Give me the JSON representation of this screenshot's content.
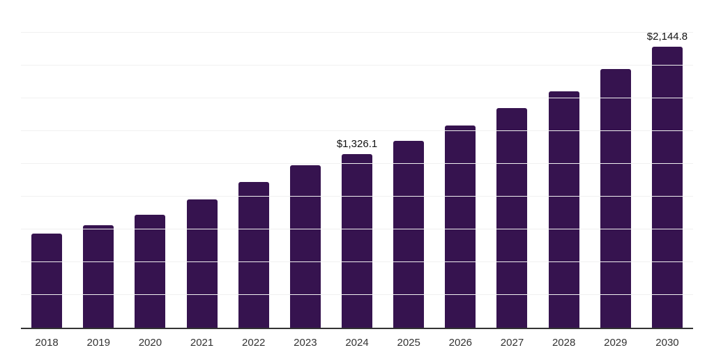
{
  "chart_meta": {
    "background_color": "#ffffff",
    "bar_color": "#36134f",
    "axis_line_color": "#333333",
    "gridline_color": "#f0f0f0",
    "tick_label_color": "#333333",
    "data_label_color": "#111111"
  },
  "chart_data": {
    "type": "bar",
    "title": "",
    "xlabel": "",
    "ylabel": "",
    "categories": [
      "2018",
      "2019",
      "2020",
      "2021",
      "2022",
      "2023",
      "2024",
      "2025",
      "2026",
      "2027",
      "2028",
      "2029",
      "2030"
    ],
    "values": [
      718,
      782,
      860,
      977,
      1113,
      1242,
      1326.1,
      1423,
      1543,
      1676,
      1803,
      1972,
      2144.8
    ],
    "data_labels": [
      "",
      "",
      "",
      "",
      "",
      "",
      "$1,326.1",
      "",
      "",
      "",
      "",
      "",
      "$2,144.8"
    ],
    "currency_prefix": "$",
    "ylim": [
      0,
      2500
    ],
    "gridline_interval": 250,
    "grid": "horizontal",
    "y_tick_labels_shown": false,
    "legend_position": "none"
  }
}
